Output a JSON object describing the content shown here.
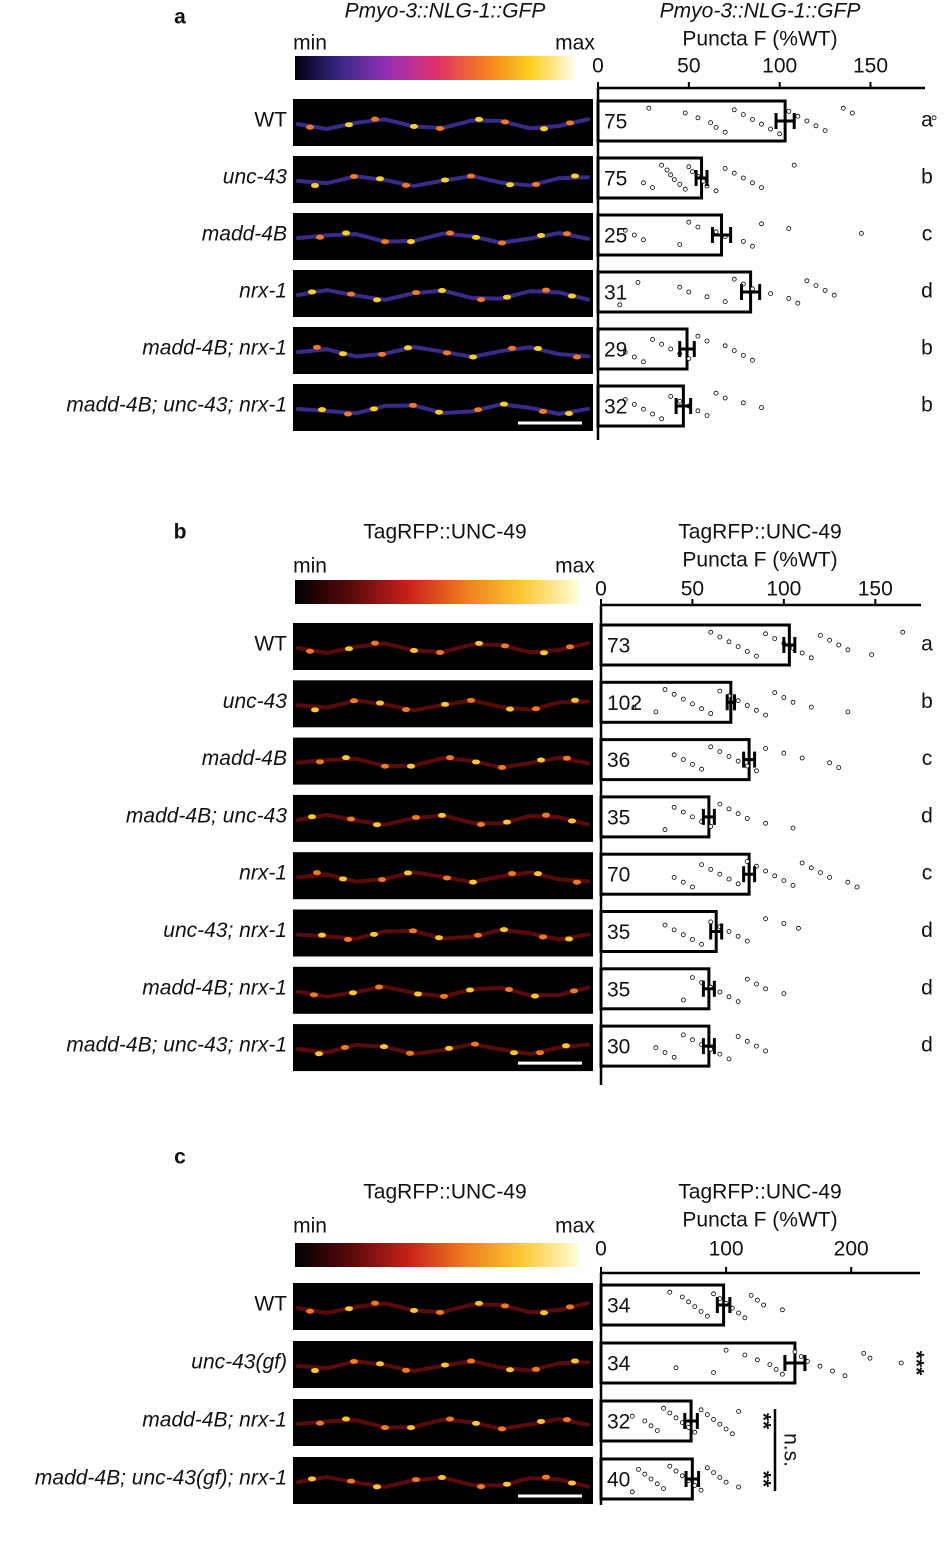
{
  "chart_data": [
    {
      "type": "bar",
      "orientation": "horizontal",
      "panel": "a",
      "image_title": "Pmyo-3::NLG-1::GFP",
      "title": [
        "Pmyo-3::NLG-1::GFP",
        "Puncta F (%WT)"
      ],
      "colorbar": {
        "min_label": "min",
        "max_label": "max",
        "colors": [
          "#000010",
          "#3a2a8a",
          "#9b2fb5",
          "#e0306a",
          "#f47a20",
          "#fbd11c",
          "#ffffff"
        ]
      },
      "categories": [
        "WT",
        "unc-43",
        "madd-4B",
        "nrx-1",
        "madd-4B; nrx-1",
        "madd-4B; unc-43; nrx-1"
      ],
      "values": [
        103,
        57,
        68,
        84,
        49,
        47
      ],
      "errors": [
        5,
        3,
        5,
        5,
        4,
        4
      ],
      "n": [
        75,
        75,
        25,
        31,
        29,
        32
      ],
      "groups": [
        "a",
        "b",
        "c",
        "d",
        "b",
        "b"
      ],
      "points": [
        [
          28,
          48,
          55,
          62,
          65,
          70,
          75,
          80,
          85,
          90,
          95,
          100,
          105,
          110,
          115,
          120,
          125,
          135,
          140,
          185
        ],
        [
          25,
          30,
          35,
          38,
          40,
          42,
          45,
          48,
          50,
          52,
          55,
          58,
          60,
          65,
          70,
          75,
          80,
          85,
          90,
          108
        ],
        [
          15,
          20,
          25,
          45,
          50,
          55,
          65,
          70,
          80,
          85,
          90,
          105,
          145
        ],
        [
          12,
          22,
          45,
          50,
          60,
          70,
          75,
          80,
          85,
          95,
          105,
          110,
          115,
          120,
          125,
          130
        ],
        [
          15,
          20,
          25,
          30,
          35,
          40,
          45,
          50,
          55,
          60,
          70,
          75,
          80,
          85
        ],
        [
          15,
          20,
          25,
          30,
          35,
          40,
          45,
          50,
          55,
          60,
          65,
          70,
          80,
          90
        ]
      ],
      "xlim": [
        0,
        180
      ],
      "xticks": [
        0,
        50,
        100,
        150
      ],
      "color": "#ffffff"
    },
    {
      "type": "bar",
      "orientation": "horizontal",
      "panel": "b",
      "image_title": "TagRFP::UNC-49",
      "title": [
        "TagRFP::UNC-49",
        "Puncta F (%WT)"
      ],
      "colorbar": {
        "min_label": "min",
        "max_label": "max",
        "colors": [
          "#000000",
          "#5a0a0a",
          "#c8201c",
          "#f07a1e",
          "#fbc830",
          "#fffcd8"
        ]
      },
      "categories": [
        "WT",
        "unc-43",
        "madd-4B",
        "madd-4B; unc-43",
        "nrx-1",
        "unc-43; nrx-1",
        "madd-4B; nrx-1",
        "madd-4B; unc-43; nrx-1"
      ],
      "values": [
        103,
        71,
        81,
        59,
        81,
        63,
        59,
        59
      ],
      "errors": [
        3,
        2,
        3,
        3,
        3,
        3,
        3,
        3
      ],
      "n": [
        73,
        102,
        36,
        35,
        70,
        35,
        35,
        30
      ],
      "groups": [
        "a",
        "b",
        "c",
        "d",
        "c",
        "d",
        "d",
        "d"
      ],
      "points": [
        [
          60,
          65,
          70,
          75,
          80,
          85,
          90,
          95,
          100,
          105,
          110,
          115,
          120,
          125,
          130,
          135,
          148,
          165
        ],
        [
          18,
          30,
          35,
          40,
          45,
          50,
          55,
          60,
          65,
          70,
          75,
          80,
          85,
          90,
          95,
          100,
          105,
          115,
          135
        ],
        [
          40,
          45,
          50,
          55,
          60,
          65,
          70,
          75,
          80,
          85,
          90,
          100,
          110,
          125,
          130
        ],
        [
          35,
          40,
          45,
          50,
          55,
          60,
          65,
          70,
          75,
          80,
          90,
          105
        ],
        [
          40,
          45,
          50,
          55,
          60,
          65,
          70,
          75,
          80,
          85,
          90,
          95,
          100,
          105,
          110,
          115,
          120,
          125,
          135,
          140
        ],
        [
          35,
          40,
          45,
          50,
          55,
          60,
          65,
          70,
          75,
          80,
          90,
          100,
          108
        ],
        [
          45,
          50,
          55,
          60,
          65,
          70,
          75,
          80,
          85,
          90,
          100
        ],
        [
          30,
          35,
          40,
          45,
          50,
          55,
          60,
          65,
          70,
          75,
          80,
          85,
          90
        ]
      ],
      "xlim": [
        0,
        175
      ],
      "xticks": [
        0,
        50,
        100,
        150
      ],
      "color": "#ffffff"
    },
    {
      "type": "bar",
      "orientation": "horizontal",
      "panel": "c",
      "image_title": "TagRFP::UNC-49",
      "title": [
        "TagRFP::UNC-49",
        "Puncta F (%WT)"
      ],
      "colorbar": {
        "min_label": "min",
        "max_label": "max",
        "colors": [
          "#000000",
          "#5a0a0a",
          "#c8201c",
          "#f07a1e",
          "#fbc830",
          "#fffcd8"
        ]
      },
      "categories": [
        "WT",
        "unc-43(gf)",
        "madd-4B; nrx-1",
        "madd-4B; unc-43(gf); nrx-1"
      ],
      "values": [
        98,
        155,
        72,
        73
      ],
      "errors": [
        5,
        8,
        5,
        5
      ],
      "n": [
        34,
        34,
        32,
        40
      ],
      "significance": [
        null,
        "***",
        "**",
        "**"
      ],
      "bracket_label": "n.s.",
      "points": [
        [
          55,
          65,
          70,
          75,
          80,
          85,
          90,
          95,
          100,
          105,
          110,
          115,
          120,
          125,
          130,
          145
        ],
        [
          60,
          90,
          100,
          115,
          125,
          135,
          140,
          145,
          155,
          160,
          165,
          175,
          185,
          195,
          210,
          215,
          240
        ],
        [
          25,
          35,
          40,
          45,
          50,
          55,
          60,
          65,
          70,
          75,
          80,
          85,
          90,
          95,
          100,
          105,
          110
        ],
        [
          25,
          30,
          35,
          40,
          45,
          50,
          55,
          60,
          65,
          70,
          75,
          80,
          85,
          90,
          95,
          100,
          110
        ]
      ],
      "xlim": [
        0,
        255
      ],
      "xticks": [
        0,
        100,
        200
      ],
      "color": "#ffffff"
    }
  ]
}
